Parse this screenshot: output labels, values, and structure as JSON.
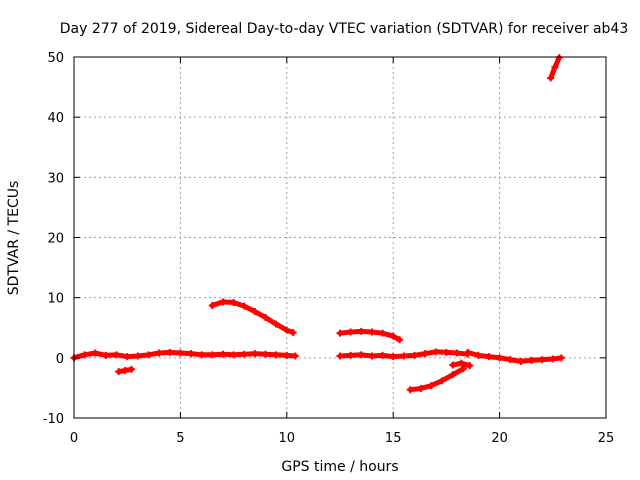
{
  "chart_data": {
    "type": "scatter",
    "title": "Day 277 of 2019, Sidereal Day-to-day VTEC variation (SDTVAR) for receiver ab43",
    "xlabel": "GPS time / hours",
    "ylabel": "SDTVAR / TECUs",
    "xlim": [
      0,
      25
    ],
    "ylim": [
      -10,
      50
    ],
    "xticks": [
      "0",
      "5",
      "10",
      "15",
      "20",
      "25"
    ],
    "yticks": [
      "-10",
      "0",
      "10",
      "20",
      "30",
      "40",
      "50"
    ],
    "grid": true,
    "color": "#ff0000",
    "series": [
      {
        "x": [
          0,
          0.5,
          1.0,
          1.5,
          2.0,
          2.5,
          3.0,
          3.5,
          4.0,
          4.5,
          5.0,
          5.5,
          6.0,
          6.5,
          7.0,
          7.5,
          8.0,
          8.5,
          9.0,
          9.5,
          10.0,
          10.4
        ],
        "y": [
          0.0,
          0.5,
          0.8,
          0.4,
          0.5,
          0.2,
          0.3,
          0.5,
          0.8,
          0.9,
          0.8,
          0.7,
          0.5,
          0.5,
          0.6,
          0.5,
          0.6,
          0.7,
          0.6,
          0.5,
          0.4,
          0.3
        ]
      },
      {
        "x": [
          2.1,
          2.4,
          2.7
        ],
        "y": [
          -2.3,
          -2.1,
          -1.9
        ]
      },
      {
        "x": [
          6.5,
          7.0,
          7.5,
          8.0,
          8.5,
          9.0,
          9.5,
          10.0,
          10.3
        ],
        "y": [
          8.7,
          9.3,
          9.2,
          8.6,
          7.7,
          6.7,
          5.6,
          4.6,
          4.2
        ]
      },
      {
        "x": [
          12.5,
          13.0,
          13.5,
          14.0,
          14.5,
          15.0,
          15.3
        ],
        "y": [
          4.1,
          4.3,
          4.4,
          4.3,
          4.1,
          3.6,
          3.0
        ]
      },
      {
        "x": [
          12.5,
          13.0,
          13.5,
          14.0,
          14.5,
          15.0,
          15.5,
          16.0,
          16.5,
          17.0,
          17.5,
          18.0,
          18.5
        ],
        "y": [
          0.3,
          0.4,
          0.5,
          0.3,
          0.4,
          0.2,
          0.3,
          0.4,
          0.7,
          1.0,
          0.9,
          0.8,
          0.6
        ]
      },
      {
        "x": [
          15.8,
          16.3,
          16.8,
          17.3,
          17.8,
          18.3
        ],
        "y": [
          -5.3,
          -5.1,
          -4.6,
          -3.8,
          -2.8,
          -1.8
        ]
      },
      {
        "x": [
          17.8,
          18.2,
          18.6
        ],
        "y": [
          -1.2,
          -0.9,
          -1.3
        ]
      },
      {
        "x": [
          18.5,
          19.0,
          19.5,
          20.0,
          20.5,
          21.0,
          21.5,
          22.0,
          22.5,
          22.9
        ],
        "y": [
          0.9,
          0.4,
          0.2,
          0.0,
          -0.3,
          -0.6,
          -0.4,
          -0.3,
          -0.2,
          0.0
        ]
      },
      {
        "x": [
          22.4,
          22.6,
          22.8
        ],
        "y": [
          46.5,
          48.3,
          49.9
        ]
      }
    ]
  }
}
